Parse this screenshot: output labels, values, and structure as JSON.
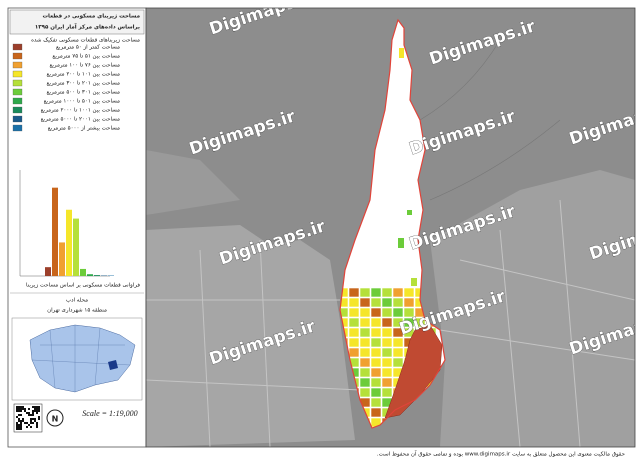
{
  "title": [
    "مساحت زیربنای مسکونی در قطعات",
    "براساس داده‌های مرکز آمار ایران ۱۳۹۵"
  ],
  "legend": {
    "title": "مساحت زیربناهای قطعات مسکونی تفکیک شده",
    "items": [
      {
        "label": "مساحت کمتر از ۵۰ مترمربع",
        "color": "#9c3f2b"
      },
      {
        "label": "مساحت بین ۵۱ تا ۷۵ مترمربع",
        "color": "#c8651b"
      },
      {
        "label": "مساحت بین ۷۶ تا ۱۰۰ مترمربع",
        "color": "#f0a030"
      },
      {
        "label": "مساحت بین ۱۰۱ تا ۲۰۰ مترمربع",
        "color": "#f5e62a"
      },
      {
        "label": "مساحت بین ۲۰۱ تا ۳۰۰ مترمربع",
        "color": "#b5e03a"
      },
      {
        "label": "مساحت بین ۳۰۱ تا ۵۰۰ مترمربع",
        "color": "#6ccc3a"
      },
      {
        "label": "مساحت بین ۵۰۱ تا ۱۰۰۰ مترمربع",
        "color": "#2ea84a"
      },
      {
        "label": "مساحت بین ۱۰۰۱ تا ۲۰۰۰ مترمربع",
        "color": "#1a8a5a"
      },
      {
        "label": "مساحت بین ۲۰۰۱ تا ۵۰۰۰ مترمربع",
        "color": "#1a5a8a"
      },
      {
        "label": "مساحت بیشتر از ۵۰۰۰ مترمربع",
        "color": "#1a70a8"
      }
    ]
  },
  "histogram": {
    "values": [
      10,
      100,
      38,
      75,
      65,
      8,
      2,
      1,
      0.5,
      0.5
    ],
    "ylim": [
      0,
      120
    ],
    "caption": "فراوانی قطعات مسکونی بر اساس مساحت زیربنا"
  },
  "locality": {
    "title": "محله ادب",
    "subtitle": "منطقه ۱۵ شهرداری تهران"
  },
  "scale": "Scale = 1:19,000",
  "north": "N",
  "watermark": "Digimaps.ir",
  "footer": "حقوق مالکیت معنوی این محصول متعلق به سایت www.digimaps.ir بوده و تمامی حقوق آن محفوظ است."
}
